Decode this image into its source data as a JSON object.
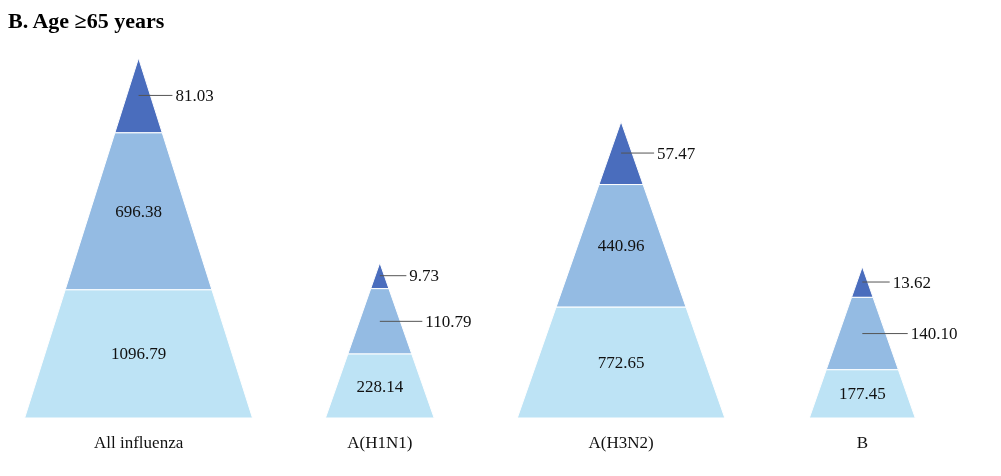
{
  "chart_data": {
    "type": "other",
    "title": "B. Age ≥65 years",
    "categories": [
      "All influenza",
      "A(H1N1)",
      "A(H3N2)",
      "B"
    ],
    "series": [
      {
        "color": "#bde3f5",
        "values": [
          1096.79,
          228.14,
          772.65,
          177.45
        ],
        "value_labels": [
          "1096.79",
          "228.14",
          "772.65",
          "177.45"
        ]
      },
      {
        "color": "#94bbe3",
        "values": [
          696.38,
          110.79,
          440.96,
          140.1
        ],
        "value_labels": [
          "696.38",
          "110.79",
          "440.96",
          "140.10"
        ]
      },
      {
        "color": "#4a6dbd",
        "values": [
          81.03,
          9.73,
          57.47,
          13.62
        ],
        "value_labels": [
          "81.03",
          "9.73",
          "57.47",
          "13.62"
        ]
      }
    ]
  }
}
